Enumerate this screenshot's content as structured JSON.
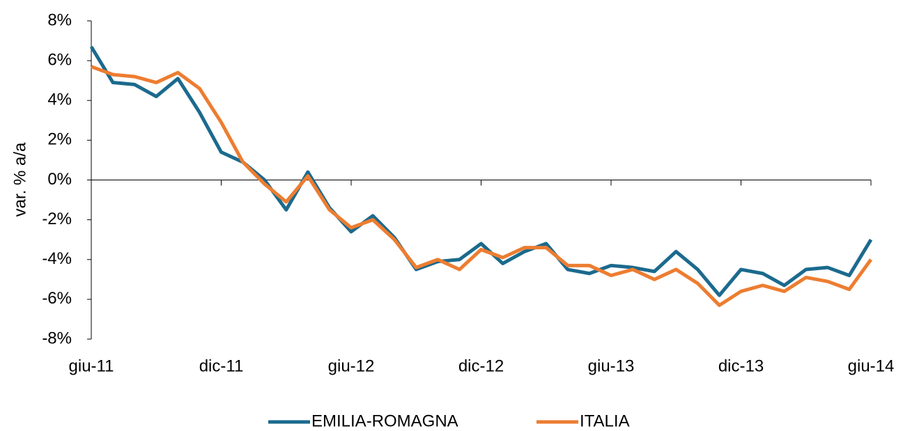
{
  "chart_data": {
    "type": "line",
    "y_label": "var. % a/a",
    "categories": [
      "giu-11",
      null,
      null,
      null,
      null,
      null,
      "dic-11",
      null,
      null,
      null,
      null,
      null,
      "giu-12",
      null,
      null,
      null,
      null,
      null,
      "dic-12",
      null,
      null,
      null,
      null,
      null,
      "giu-13",
      null,
      null,
      null,
      null,
      null,
      "dic-13",
      null,
      null,
      null,
      null,
      null,
      "giu-14"
    ],
    "series": [
      {
        "name": "EMILIA-ROMAGNA",
        "color": "#1b6a8d",
        "values": [
          6.7,
          4.9,
          4.8,
          4.2,
          5.1,
          3.4,
          1.4,
          0.9,
          0.0,
          -1.5,
          0.4,
          -1.4,
          -2.6,
          -1.8,
          -2.9,
          -4.5,
          -4.1,
          -4.0,
          -3.2,
          -4.2,
          -3.6,
          -3.2,
          -4.5,
          -4.7,
          -4.3,
          -4.4,
          -4.6,
          -3.6,
          -4.5,
          -5.8,
          -4.5,
          -4.7,
          -5.3,
          -4.5,
          -4.4,
          -4.8,
          -3.0
        ]
      },
      {
        "name": "ITALIA",
        "color": "#ed7d31",
        "values": [
          5.7,
          5.3,
          5.2,
          4.9,
          5.4,
          4.6,
          2.9,
          0.9,
          -0.2,
          -1.1,
          0.2,
          -1.5,
          -2.4,
          -2.0,
          -3.0,
          -4.4,
          -4.0,
          -4.5,
          -3.5,
          -3.9,
          -3.4,
          -3.4,
          -4.3,
          -4.3,
          -4.8,
          -4.5,
          -5.0,
          -4.5,
          -5.2,
          -6.3,
          -5.6,
          -5.3,
          -5.6,
          -4.9,
          -5.1,
          -5.5,
          -4.0
        ]
      }
    ],
    "ylim": [
      -8,
      8
    ],
    "yticks": [
      {
        "value": -8,
        "label": "-8%"
      },
      {
        "value": -6,
        "label": "-6%"
      },
      {
        "value": -4,
        "label": "-4%"
      },
      {
        "value": -2,
        "label": "-2%"
      },
      {
        "value": 0,
        "label": "0%"
      },
      {
        "value": 2,
        "label": "2%"
      },
      {
        "value": 4,
        "label": "4%"
      },
      {
        "value": 6,
        "label": "6%"
      },
      {
        "value": 8,
        "label": "8%"
      }
    ],
    "legend": "bottom"
  }
}
